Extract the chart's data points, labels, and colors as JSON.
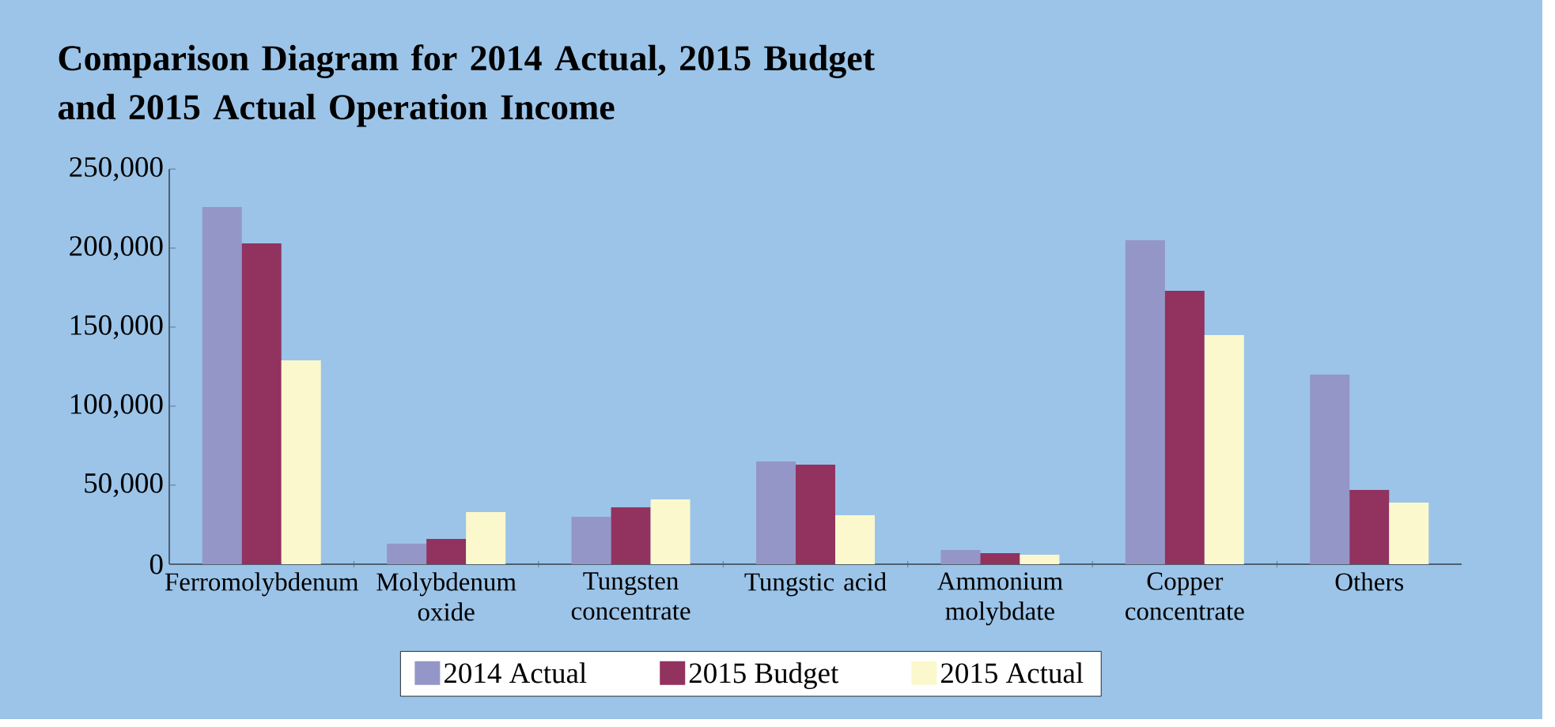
{
  "chart_data": {
    "type": "bar",
    "title": "Comparison Diagram for 2014 Actual, 2015 Budget and 2015 Actual Operation Income",
    "categories": [
      "Ferromolybdenum",
      "Molybdenum oxide",
      "Tungsten concentrate",
      "Tungstic acid",
      "Ammonium molybdate",
      "Copper concentrate",
      "Others"
    ],
    "series": [
      {
        "name": "2014 Actual",
        "color": "#9496c8",
        "values": [
          226000,
          13000,
          30000,
          65000,
          9000,
          205000,
          120000
        ]
      },
      {
        "name": "2015 Budget",
        "color": "#92325f",
        "values": [
          203000,
          16000,
          36000,
          63000,
          7000,
          173000,
          47000
        ]
      },
      {
        "name": "2015 Actual",
        "color": "#faf8cc",
        "values": [
          129000,
          33000,
          41000,
          31000,
          6000,
          145000,
          39000
        ]
      }
    ],
    "ylim": [
      0,
      250000
    ],
    "yticks": [
      0,
      {
        "value": 50000,
        "label": "50,000"
      },
      {
        "value": 100000,
        "label": "100,000"
      },
      {
        "value": 150000,
        "label": "150,000"
      },
      {
        "value": 200000,
        "label": "200,000"
      },
      {
        "value": 250000,
        "label": "250,000"
      }
    ],
    "grid": false,
    "legend": "bottom"
  }
}
